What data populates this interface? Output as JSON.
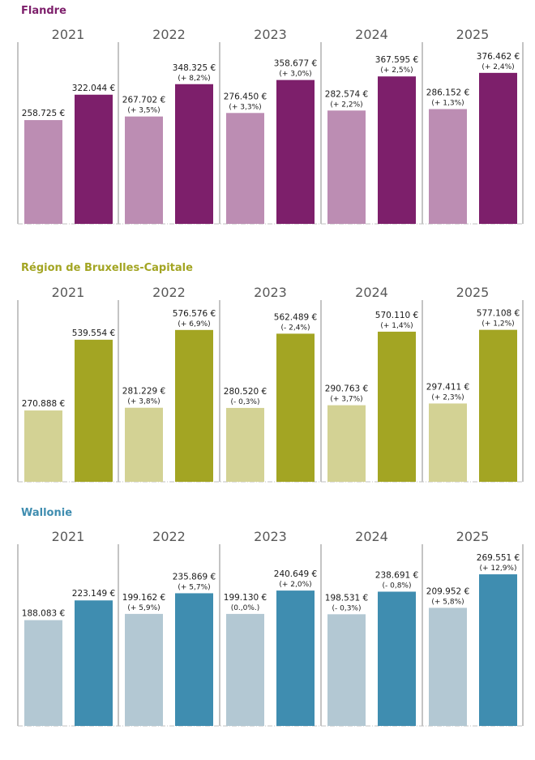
{
  "chart_data": [
    {
      "type": "bar",
      "title": "Flandre",
      "title_color": "#7d1f6b",
      "categories": [
        "2021",
        "2022",
        "2023",
        "2024",
        "2025"
      ],
      "series": [
        {
          "name": "light",
          "color": "#bc8db3",
          "values": [
            258725,
            267702,
            276450,
            282574,
            286152
          ],
          "labels": [
            "258.725 €",
            "267.702 €",
            "276.450 €",
            "282.574 €",
            "286.152 €"
          ],
          "changes": [
            "",
            "(+ 3,5%)",
            "(+ 3,3%)",
            "(+ 2,2%)",
            "(+ 1,3%)"
          ]
        },
        {
          "name": "dark",
          "color": "#7d1f6b",
          "values": [
            322044,
            348325,
            358677,
            367595,
            376462
          ],
          "labels": [
            "322.044 €",
            "348.325 €",
            "358.677 €",
            "367.595 €",
            "376.462 €"
          ],
          "changes": [
            "",
            "(+ 8,2%)",
            "(+ 3,0%)",
            "(+ 2,5%)",
            "(+ 2,4%)"
          ]
        }
      ],
      "ylim": [
        0,
        453000
      ]
    },
    {
      "type": "bar",
      "title": "Région de Bruxelles-Capitale",
      "title_color": "#a3a523",
      "categories": [
        "2021",
        "2022",
        "2023",
        "2024",
        "2025"
      ],
      "series": [
        {
          "name": "light",
          "color": "#d3d294",
          "values": [
            270888,
            281229,
            280520,
            290763,
            297411
          ],
          "labels": [
            "270.888 €",
            "281.229 €",
            "280.520 €",
            "290.763 €",
            "297.411 €"
          ],
          "changes": [
            "",
            "(+ 3,8%)",
            "(- 0,3%)",
            "(+ 3,7%)",
            "(+ 2,3%)"
          ]
        },
        {
          "name": "dark",
          "color": "#a3a523",
          "values": [
            539554,
            576576,
            562489,
            570110,
            577108
          ],
          "labels": [
            "539.554 €",
            "576.576 €",
            "562.489 €",
            "570.110 €",
            "577.108 €"
          ],
          "changes": [
            "",
            "(+ 6,9%)",
            "(- 2,4%)",
            "(+ 1,4%)",
            "(+ 1,2%)"
          ]
        }
      ],
      "ylim": [
        0,
        690000
      ]
    },
    {
      "type": "bar",
      "title": "Wallonie",
      "title_color": "#3f8db0",
      "categories": [
        "2021",
        "2022",
        "2023",
        "2024",
        "2025"
      ],
      "series": [
        {
          "name": "light",
          "color": "#b3c8d3",
          "values": [
            188083,
            199162,
            199130,
            198531,
            209952
          ],
          "labels": [
            "188.083 €",
            "199.162 €",
            "199.130 €",
            "198.531 €",
            "209.952 €"
          ],
          "changes": [
            "",
            "(+ 5,9%)",
            "(0.,0%.)",
            "(- 0,3%)",
            "(+ 5,8%)"
          ]
        },
        {
          "name": "dark",
          "color": "#3f8db0",
          "values": [
            223149,
            235869,
            240649,
            238691,
            269551
          ],
          "labels": [
            "223.149 €",
            "235.869 €",
            "240.649 €",
            "238.691 €",
            "269.551 €"
          ],
          "changes": [
            "",
            "(+ 5,7%)",
            "(+ 2,0%)",
            "(- 0,8%)",
            "(+ 12,9%)"
          ]
        }
      ],
      "ylim": [
        0,
        323000
      ]
    }
  ]
}
